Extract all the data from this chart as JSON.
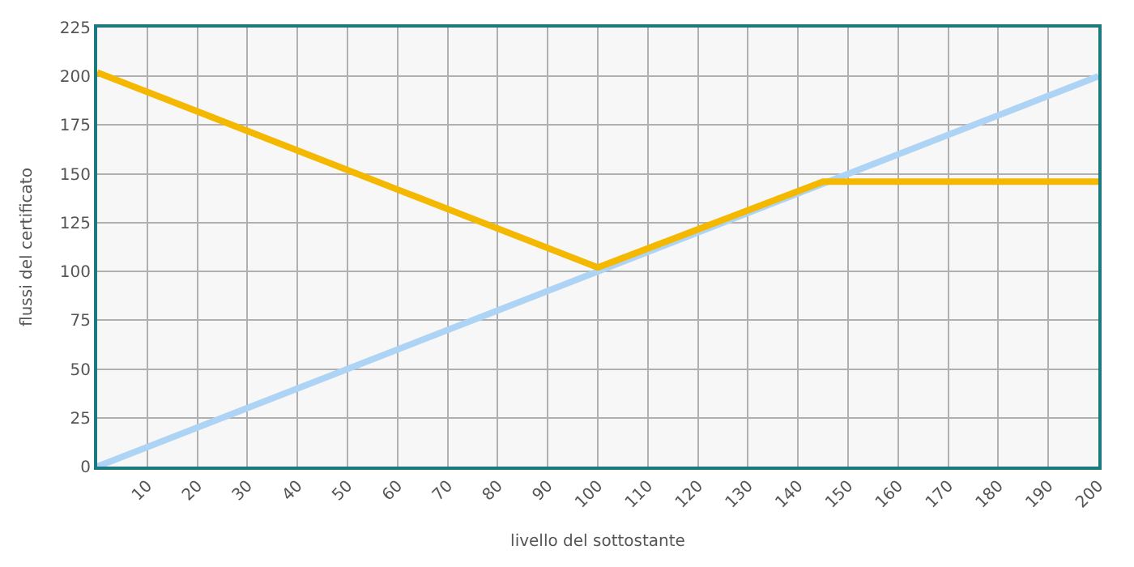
{
  "chart_data": {
    "type": "line",
    "xlabel": "livello del sottostante",
    "ylabel": "flussi del certificato",
    "x": [
      0,
      200
    ],
    "series": [
      {
        "color": "#aed4f5",
        "values": [
          0,
          200
        ]
      },
      {
        "color": "#f5b800",
        "x": [
          0,
          100,
          145,
          200
        ],
        "values": [
          202,
          102,
          146,
          146
        ]
      }
    ],
    "xlim": [
      0,
      200
    ],
    "xticks": [
      {
        "value": 0,
        "label": null
      },
      10,
      20,
      30,
      40,
      50,
      60,
      70,
      80,
      90,
      100,
      110,
      120,
      130,
      140,
      150,
      160,
      170,
      180,
      190,
      200
    ],
    "ylim": [
      0,
      225
    ],
    "yticks": [
      0,
      25,
      50,
      75,
      100,
      125,
      150,
      175,
      200,
      225
    ],
    "grid": true,
    "marker": "none",
    "line_style": "solid"
  }
}
